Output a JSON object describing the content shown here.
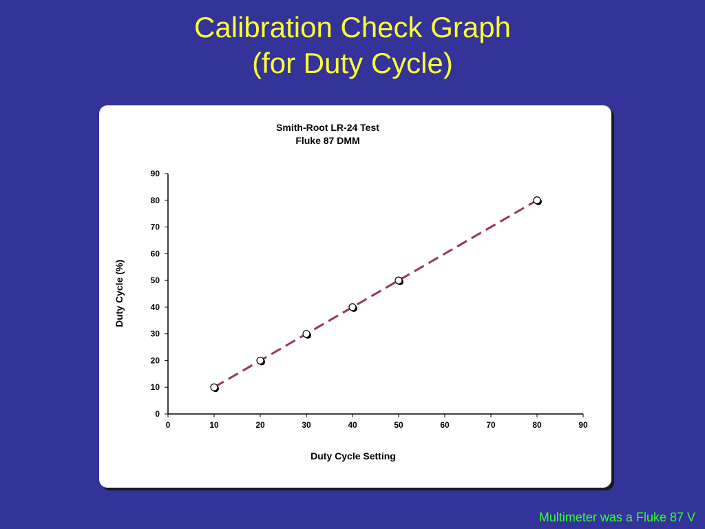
{
  "slide": {
    "title_line1": "Calibration Check Graph",
    "title_line2": "(for Duty Cycle)",
    "footer": "Multimeter was a Fluke 87 V"
  },
  "colors": {
    "background": "#333399",
    "title": "#ffff33",
    "footer": "#33ff33",
    "line": "#993366"
  },
  "chart_data": {
    "type": "scatter",
    "title": "Smith-Root LR-24 Test",
    "subtitle": "Fluke 87 DMM",
    "xlabel": "Duty Cycle Setting",
    "ylabel": "Duty Cycle (%)",
    "xlim": [
      0,
      90
    ],
    "ylim": [
      0,
      90
    ],
    "xticks": [
      0,
      10,
      20,
      30,
      40,
      50,
      60,
      70,
      80,
      90
    ],
    "yticks": [
      0,
      10,
      20,
      30,
      40,
      50,
      60,
      70,
      80,
      90
    ],
    "grid": false,
    "points": [
      {
        "x": 10,
        "y": 10
      },
      {
        "x": 20,
        "y": 20
      },
      {
        "x": 30,
        "y": 30
      },
      {
        "x": 40,
        "y": 40
      },
      {
        "x": 50,
        "y": 50
      },
      {
        "x": 80,
        "y": 80
      }
    ],
    "fit_line": {
      "x": [
        10,
        80
      ],
      "y": [
        10,
        80
      ],
      "style": "dashed"
    }
  }
}
